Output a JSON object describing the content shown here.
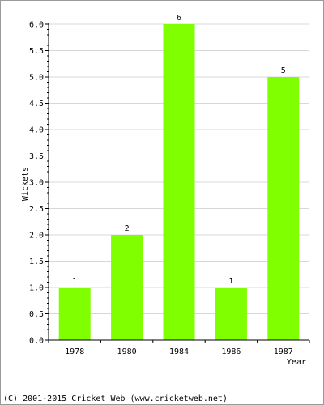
{
  "colors": {
    "bar": "#7fff00",
    "grid": "#d8d8d8",
    "axis": "#000000"
  },
  "footer_text": "(C) 2001-2015 Cricket Web (www.cricketweb.net)",
  "chart_data": {
    "type": "bar",
    "categories": [
      "1978",
      "1980",
      "1984",
      "1986",
      "1987"
    ],
    "values": [
      1,
      2,
      6,
      1,
      5
    ],
    "data_labels": [
      "1",
      "2",
      "6",
      "1",
      "5"
    ],
    "title": "",
    "xlabel": "Year",
    "ylabel": "Wickets",
    "ylim": [
      0,
      6
    ],
    "y_ticks": [
      "0.0",
      "0.5",
      "1.0",
      "1.5",
      "2.0",
      "2.5",
      "3.0",
      "3.5",
      "4.0",
      "4.5",
      "5.0",
      "5.5",
      "6.0"
    ],
    "grid": true,
    "legend": "none"
  }
}
